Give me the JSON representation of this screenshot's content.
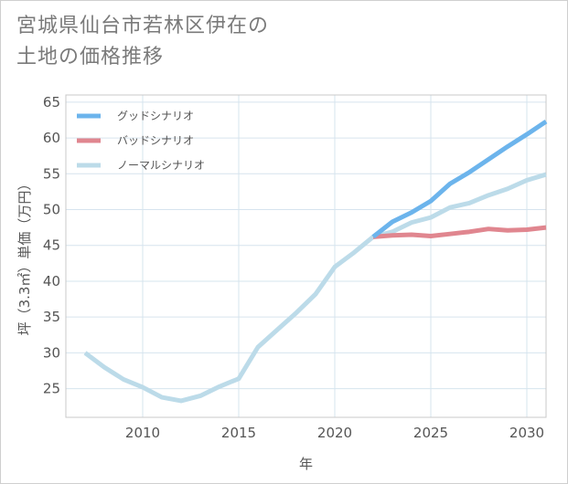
{
  "title_lines": [
    "宮城県仙台市若林区伊在の",
    "土地の価格推移"
  ],
  "chart_data": {
    "type": "line",
    "xlabel": "年",
    "ylabel": "坪（3.3㎡）単価（万円）",
    "xlim": [
      2006,
      2031
    ],
    "ylim": [
      21,
      66
    ],
    "x_ticks": [
      2010,
      2015,
      2020,
      2025,
      2030
    ],
    "y_ticks": [
      25,
      30,
      35,
      40,
      45,
      50,
      55,
      60,
      65
    ],
    "grid": true,
    "legend_position": "top-left",
    "series": [
      {
        "name": "グッドシナリオ",
        "color": "#6cb4ec",
        "x": [
          2022,
          2023,
          2024,
          2025,
          2026,
          2027,
          2028,
          2029,
          2030,
          2031
        ],
        "y": [
          46.2,
          48.3,
          49.6,
          51.2,
          53.6,
          55.2,
          57.0,
          58.8,
          60.5,
          62.3
        ]
      },
      {
        "name": "バッドシナリオ",
        "color": "#e0868f",
        "x": [
          2022,
          2023,
          2024,
          2025,
          2026,
          2027,
          2028,
          2029,
          2030,
          2031
        ],
        "y": [
          46.2,
          46.4,
          46.5,
          46.3,
          46.6,
          46.9,
          47.3,
          47.1,
          47.2,
          47.5
        ]
      },
      {
        "name": "ノーマルシナリオ",
        "color": "#bcdbe9",
        "x": [
          2007,
          2008,
          2009,
          2010,
          2011,
          2012,
          2013,
          2014,
          2015,
          2016,
          2017,
          2018,
          2019,
          2020,
          2021,
          2022,
          2023,
          2024,
          2025,
          2026,
          2027,
          2028,
          2029,
          2030,
          2031
        ],
        "y": [
          30.0,
          28.0,
          26.3,
          25.2,
          23.8,
          23.3,
          24.0,
          25.3,
          26.4,
          30.8,
          33.2,
          35.6,
          38.2,
          42.0,
          44.0,
          46.2,
          46.9,
          48.2,
          48.9,
          50.3,
          50.9,
          52.0,
          52.9,
          54.1,
          54.9
        ]
      }
    ]
  }
}
